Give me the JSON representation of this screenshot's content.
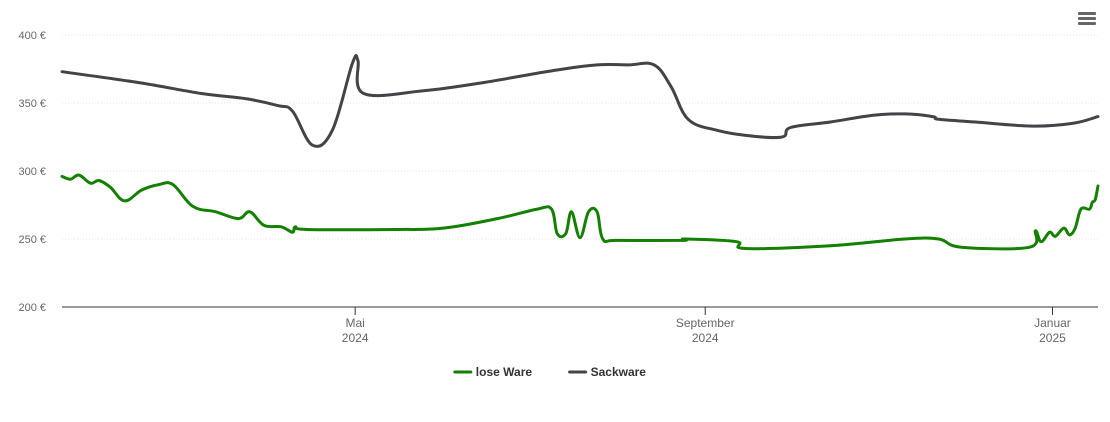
{
  "menu": {
    "icon": "hamburger-menu-icon"
  },
  "chart_data": {
    "type": "line",
    "title": "",
    "xlabel": "",
    "ylabel": "",
    "y_unit": "€",
    "ylim": [
      200,
      400
    ],
    "yticks": [
      {
        "value": 200,
        "label": "200 €"
      },
      {
        "value": 250,
        "label": "250 €"
      },
      {
        "value": 300,
        "label": "300 €"
      },
      {
        "value": 350,
        "label": "350 €"
      },
      {
        "value": 400,
        "label": "400 €"
      }
    ],
    "xlim": [
      "2024-01-19",
      "2025-01-17"
    ],
    "xticks": [
      {
        "date": "2024-05-01",
        "line1": "Mai",
        "line2": "2024"
      },
      {
        "date": "2024-09-01",
        "line1": "September",
        "line2": "2024"
      },
      {
        "date": "2025-01-01",
        "line1": "Januar",
        "line2": "2025"
      }
    ],
    "legend_position": "bottom-center",
    "grid": true,
    "series": [
      {
        "name": "lose Ware",
        "color": "#138000",
        "points": [
          [
            "2024-01-19",
            296
          ],
          [
            "2024-01-22",
            294
          ],
          [
            "2024-01-25",
            297
          ],
          [
            "2024-01-29",
            291
          ],
          [
            "2024-02-01",
            293
          ],
          [
            "2024-02-05",
            288
          ],
          [
            "2024-02-10",
            278
          ],
          [
            "2024-02-16",
            286
          ],
          [
            "2024-02-22",
            290
          ],
          [
            "2024-02-27",
            290
          ],
          [
            "2024-03-05",
            274
          ],
          [
            "2024-03-13",
            270
          ],
          [
            "2024-03-21",
            265
          ],
          [
            "2024-03-25",
            270
          ],
          [
            "2024-03-30",
            260
          ],
          [
            "2024-04-05",
            259
          ],
          [
            "2024-04-09",
            255
          ],
          [
            "2024-04-10",
            259
          ],
          [
            "2024-04-14",
            257
          ],
          [
            "2024-05-15",
            257
          ],
          [
            "2024-06-01",
            258
          ],
          [
            "2024-06-20",
            265
          ],
          [
            "2024-07-04",
            272
          ],
          [
            "2024-07-09",
            272
          ],
          [
            "2024-07-11",
            254
          ],
          [
            "2024-07-14",
            254
          ],
          [
            "2024-07-16",
            270
          ],
          [
            "2024-07-19",
            251
          ],
          [
            "2024-07-22",
            270
          ],
          [
            "2024-07-25",
            270
          ],
          [
            "2024-07-27",
            250
          ],
          [
            "2024-08-01",
            249
          ],
          [
            "2024-08-24",
            249
          ],
          [
            "2024-08-25",
            250
          ],
          [
            "2024-09-12",
            248
          ],
          [
            "2024-09-15",
            243
          ],
          [
            "2024-10-15",
            245
          ],
          [
            "2024-11-10",
            250
          ],
          [
            "2024-11-22",
            250
          ],
          [
            "2024-11-30",
            244
          ],
          [
            "2024-12-24",
            244
          ],
          [
            "2024-12-26",
            256
          ],
          [
            "2024-12-28",
            248
          ],
          [
            "2024-12-31",
            255
          ],
          [
            "2025-01-02",
            252
          ],
          [
            "2025-01-05",
            258
          ],
          [
            "2025-01-07",
            253
          ],
          [
            "2025-01-09",
            258
          ],
          [
            "2025-01-11",
            272
          ],
          [
            "2025-01-14",
            272
          ],
          [
            "2025-01-15",
            277
          ],
          [
            "2025-01-16",
            279
          ],
          [
            "2025-01-17",
            289
          ]
        ]
      },
      {
        "name": "Sackware",
        "color": "#434348",
        "points": [
          [
            "2024-01-19",
            373
          ],
          [
            "2024-02-15",
            365
          ],
          [
            "2024-03-08",
            357
          ],
          [
            "2024-03-24",
            353
          ],
          [
            "2024-04-04",
            348
          ],
          [
            "2024-04-09",
            344
          ],
          [
            "2024-04-16",
            319
          ],
          [
            "2024-04-23",
            330
          ],
          [
            "2024-04-30",
            379
          ],
          [
            "2024-05-02",
            381
          ],
          [
            "2024-05-04",
            357
          ],
          [
            "2024-05-25",
            359
          ],
          [
            "2024-06-15",
            365
          ],
          [
            "2024-07-10",
            374
          ],
          [
            "2024-07-25",
            378
          ],
          [
            "2024-08-05",
            378
          ],
          [
            "2024-08-14",
            378
          ],
          [
            "2024-08-20",
            362
          ],
          [
            "2024-08-26",
            338
          ],
          [
            "2024-09-05",
            330
          ],
          [
            "2024-09-16",
            326
          ],
          [
            "2024-09-28",
            325
          ],
          [
            "2024-10-01",
            332
          ],
          [
            "2024-10-15",
            336
          ],
          [
            "2024-10-30",
            341
          ],
          [
            "2024-11-10",
            342
          ],
          [
            "2024-11-20",
            340
          ],
          [
            "2024-11-22",
            338
          ],
          [
            "2024-12-05",
            336
          ],
          [
            "2024-12-25",
            333
          ],
          [
            "2025-01-08",
            335
          ],
          [
            "2025-01-17",
            340
          ]
        ]
      }
    ]
  }
}
